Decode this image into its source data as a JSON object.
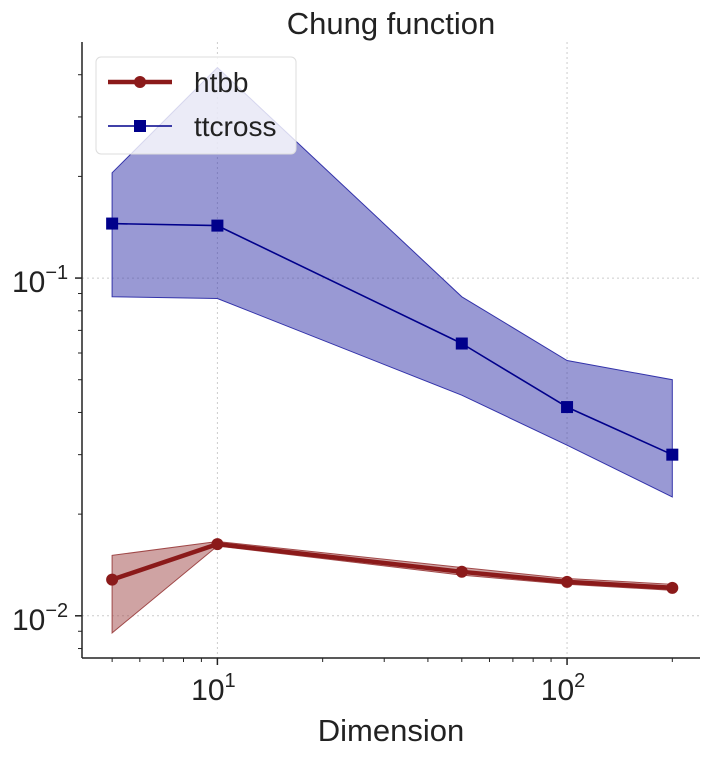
{
  "chart_data": {
    "type": "line",
    "title": "Chung function",
    "xlabel": "Dimension",
    "ylabel": "",
    "xscale": "log",
    "yscale": "log",
    "xlim": [
      4.1,
      240
    ],
    "ylim": [
      0.0075,
      0.5
    ],
    "x_ticks": [
      {
        "value": 10,
        "base": "10",
        "exp": "1"
      },
      {
        "value": 100,
        "base": "10",
        "exp": "2"
      }
    ],
    "y_ticks": [
      {
        "value": 0.01,
        "base": "10",
        "exp": "−2"
      },
      {
        "value": 0.1,
        "base": "10",
        "exp": "−1"
      }
    ],
    "grid": true,
    "legend_position": "top-left",
    "series": [
      {
        "name": "htbb",
        "color": "#8b1a1a",
        "fill_color": "#a04848",
        "marker": "circle",
        "x": [
          5,
          10,
          50,
          100,
          200
        ],
        "y": [
          0.0128,
          0.0163,
          0.0135,
          0.0126,
          0.0121
        ],
        "lower": [
          0.0089,
          0.0161,
          0.0132,
          0.0124,
          0.0119
        ],
        "upper": [
          0.0151,
          0.0166,
          0.0139,
          0.0129,
          0.0124
        ]
      },
      {
        "name": "ttcross",
        "color": "#00008b",
        "fill_color": "#3333aa",
        "marker": "square",
        "x": [
          5,
          10,
          50,
          100,
          200
        ],
        "y": [
          0.145,
          0.143,
          0.064,
          0.0415,
          0.03
        ],
        "lower": [
          0.088,
          0.087,
          0.045,
          0.032,
          0.0225
        ],
        "upper": [
          0.205,
          0.42,
          0.088,
          0.057,
          0.05
        ]
      }
    ]
  }
}
